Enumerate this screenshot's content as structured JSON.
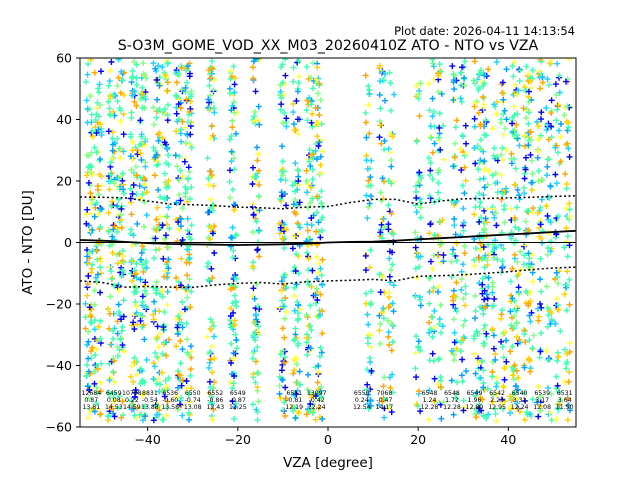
{
  "header": {
    "plot_date": "Plot date: 2026-04-11 14:13:54",
    "title": "S-O3M_GOME_VOD_XX_M03_20260410Z ATO - NTO vs VZA"
  },
  "chart_data": {
    "type": "scatter",
    "title": "S-O3M_GOME_VOD_XX_M03_20260410Z ATO - NTO vs VZA",
    "xlabel": "VZA [degree]",
    "ylabel": "ATO - NTO [DU]",
    "xlim": [
      -55,
      55
    ],
    "ylim": [
      -60,
      60
    ],
    "xticks": [
      -40,
      -20,
      0,
      20,
      40
    ],
    "yticks": [
      -60,
      -40,
      -20,
      0,
      20,
      40,
      60
    ],
    "marker": "+",
    "point_colors": [
      "#40ffb0",
      "#40ffb0",
      "#40ffb0",
      "#80ff80",
      "#ffd000",
      "#ffa500",
      "#ffff40",
      "#20d0ff",
      "#00a0ff",
      "#0000ff"
    ],
    "columns_left": [
      -53,
      -51,
      -48,
      -46,
      -43,
      -41,
      -38,
      -36,
      -33,
      -31,
      -26,
      -21,
      -16,
      -10,
      -7,
      -4,
      -2
    ],
    "columns_right": [
      9,
      12,
      14,
      20,
      23,
      25,
      28,
      30,
      33,
      34,
      35,
      37,
      39,
      41,
      42,
      44,
      45,
      47,
      49,
      51,
      53
    ],
    "mean_line": [
      {
        "x": -55,
        "y": 0.8
      },
      {
        "x": -50,
        "y": 0.6
      },
      {
        "x": -45,
        "y": 0.2
      },
      {
        "x": -40,
        "y": -0.2
      },
      {
        "x": -35,
        "y": -0.5
      },
      {
        "x": -30,
        "y": -0.6
      },
      {
        "x": -25,
        "y": -0.7
      },
      {
        "x": -20,
        "y": -0.8
      },
      {
        "x": -15,
        "y": -0.7
      },
      {
        "x": -10,
        "y": -0.6
      },
      {
        "x": -5,
        "y": -0.4
      },
      {
        "x": 0,
        "y": 0.0
      },
      {
        "x": 5,
        "y": 0.2
      },
      {
        "x": 10,
        "y": 0.3
      },
      {
        "x": 15,
        "y": 0.6
      },
      {
        "x": 20,
        "y": 1.0
      },
      {
        "x": 25,
        "y": 1.4
      },
      {
        "x": 30,
        "y": 1.8
      },
      {
        "x": 35,
        "y": 2.2
      },
      {
        "x": 40,
        "y": 2.6
      },
      {
        "x": 45,
        "y": 3.0
      },
      {
        "x": 50,
        "y": 3.4
      },
      {
        "x": 55,
        "y": 3.8
      }
    ],
    "upper_band": [
      {
        "x": -55,
        "y": 14.8
      },
      {
        "x": -50,
        "y": 14.7
      },
      {
        "x": -45,
        "y": 14.5
      },
      {
        "x": -40,
        "y": 13.5
      },
      {
        "x": -35,
        "y": 12.5
      },
      {
        "x": -30,
        "y": 12.3
      },
      {
        "x": -25,
        "y": 12.0
      },
      {
        "x": -20,
        "y": 11.5
      },
      {
        "x": -15,
        "y": 11.3
      },
      {
        "x": -10,
        "y": 11.0
      },
      {
        "x": -5,
        "y": 11.5
      },
      {
        "x": 0,
        "y": 11.7
      },
      {
        "x": 5,
        "y": 13.0
      },
      {
        "x": 10,
        "y": 14.0
      },
      {
        "x": 15,
        "y": 14.0
      },
      {
        "x": 20,
        "y": 12.5
      },
      {
        "x": 25,
        "y": 13.5
      },
      {
        "x": 30,
        "y": 14.2
      },
      {
        "x": 35,
        "y": 14.3
      },
      {
        "x": 40,
        "y": 14.5
      },
      {
        "x": 45,
        "y": 14.7
      },
      {
        "x": 50,
        "y": 15.0
      },
      {
        "x": 55,
        "y": 15.2
      }
    ],
    "lower_band": [
      {
        "x": -55,
        "y": -12.5
      },
      {
        "x": -50,
        "y": -13.0
      },
      {
        "x": -45,
        "y": -14.5
      },
      {
        "x": -40,
        "y": -14.3
      },
      {
        "x": -35,
        "y": -14.5
      },
      {
        "x": -30,
        "y": -14.6
      },
      {
        "x": -25,
        "y": -13.8
      },
      {
        "x": -20,
        "y": -13.3
      },
      {
        "x": -15,
        "y": -13.0
      },
      {
        "x": -10,
        "y": -13.5
      },
      {
        "x": -5,
        "y": -12.8
      },
      {
        "x": 0,
        "y": -12.5
      },
      {
        "x": 5,
        "y": -12.3
      },
      {
        "x": 10,
        "y": -12.0
      },
      {
        "x": 15,
        "y": -12.5
      },
      {
        "x": 20,
        "y": -11.0
      },
      {
        "x": 25,
        "y": -10.8
      },
      {
        "x": 30,
        "y": -10.5
      },
      {
        "x": 35,
        "y": -10.0
      },
      {
        "x": 40,
        "y": -9.5
      },
      {
        "x": 45,
        "y": -8.8
      },
      {
        "x": 50,
        "y": -8.3
      },
      {
        "x": 55,
        "y": -8.0
      }
    ],
    "bin_stats": [
      {
        "x": -52.5,
        "count": "12684",
        "mean": "0.87",
        "std": "13.81"
      },
      {
        "x": -47.5,
        "count": "6459",
        "mean": "0.08",
        "std": "14.53"
      },
      {
        "x": -43.5,
        "count": "10708",
        "mean": "0.22",
        "std": "14.59"
      },
      {
        "x": -39.5,
        "count": "8831",
        "mean": "-0.54",
        "std": "13.83"
      },
      {
        "x": -35.0,
        "count": "6536",
        "mean": "-0.60",
        "std": "13.58"
      },
      {
        "x": -30.0,
        "count": "6550",
        "mean": "-0.74",
        "std": "13.08"
      },
      {
        "x": -25.0,
        "count": "6552",
        "mean": "-0.86",
        "std": "12.43"
      },
      {
        "x": -20.0,
        "count": "6549",
        "mean": "-0.87",
        "std": "12.25"
      },
      {
        "x": -7.5,
        "count": "6551",
        "mean": "-0.81",
        "std": "12.19"
      },
      {
        "x": -2.5,
        "count": "13097",
        "mean": "-0.42",
        "std": "12.24"
      },
      {
        "x": 7.5,
        "count": "6550",
        "mean": "0.24",
        "std": "12.54"
      },
      {
        "x": 12.5,
        "count": "7068",
        "mean": "-0.47",
        "std": "14.17"
      },
      {
        "x": 22.5,
        "count": "6548",
        "mean": "1.24",
        "std": "12.28"
      },
      {
        "x": 27.5,
        "count": "6548",
        "mean": "1.72",
        "std": "12.28"
      },
      {
        "x": 32.5,
        "count": "6549",
        "mean": "1.96",
        "std": "12.80"
      },
      {
        "x": 37.5,
        "count": "6542",
        "mean": "2.23",
        "std": "12.95"
      },
      {
        "x": 42.5,
        "count": "6540",
        "mean": "3.31",
        "std": "12.24"
      },
      {
        "x": 47.5,
        "count": "6539",
        "mean": "3.17",
        "std": "12.08"
      },
      {
        "x": 52.5,
        "count": "6531",
        "mean": "3.64",
        "std": "11.50"
      }
    ]
  }
}
